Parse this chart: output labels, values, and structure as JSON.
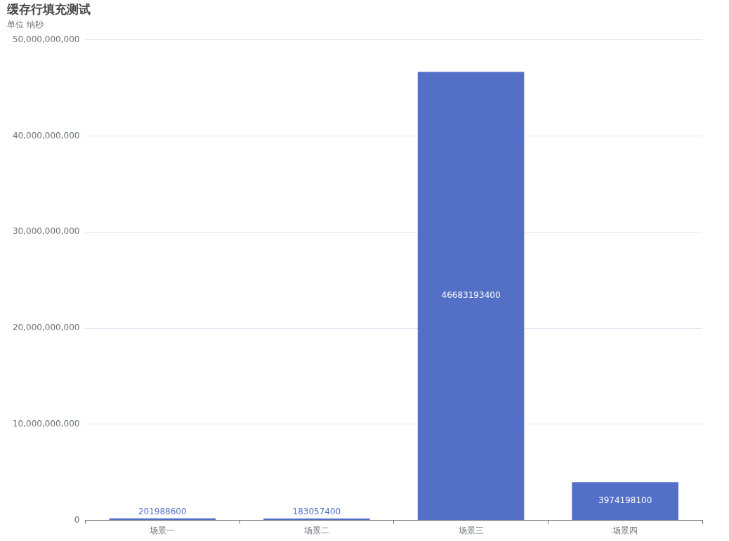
{
  "chart_data": {
    "type": "bar",
    "title": "缓存行填充测试",
    "subtitle": "单位 纳秒",
    "categories": [
      "场景一",
      "场景二",
      "场景三",
      "场景四"
    ],
    "values": [
      201988600,
      183057400,
      46683193400,
      3974198100
    ],
    "color": "#5470c6",
    "ylim": [
      0,
      50000000000
    ],
    "yticks": [
      0,
      {
        "value": 10000000000,
        "label": "10,000,000,000"
      },
      {
        "value": 20000000000,
        "label": "20,000,000,000"
      },
      {
        "value": 30000000000,
        "label": "30,000,000,000"
      },
      {
        "value": 40000000000,
        "label": "40,000,000,000"
      },
      {
        "value": 50000000000,
        "label": "50,000,000,000"
      }
    ],
    "grid": "y",
    "data_labels": true
  }
}
